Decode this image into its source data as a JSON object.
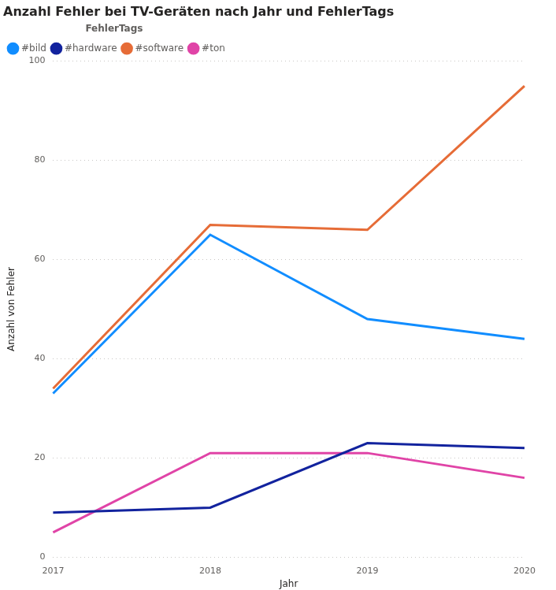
{
  "chart_data": {
    "type": "line",
    "title": "Anzahl Fehler bei TV-Geräten nach Jahr und FehlerTags",
    "x_label": "Jahr",
    "y_label": "Anzahl von Fehler",
    "legend_title": "FehlerTags",
    "legend": "top-left",
    "categories": [
      "2017",
      "2018",
      "2019",
      "2020"
    ],
    "series": [
      {
        "name": "#bild",
        "color": "#118DFF",
        "values": [
          33,
          65,
          48,
          44
        ]
      },
      {
        "name": "#hardware",
        "color": "#12239E",
        "values": [
          9,
          10,
          23,
          22
        ]
      },
      {
        "name": "#software",
        "color": "#E66C37",
        "values": [
          34,
          67,
          66,
          95
        ]
      },
      {
        "name": "#ton",
        "color": "#E044A7",
        "values": [
          5,
          21,
          21,
          16
        ]
      }
    ],
    "ylim": [
      0,
      100
    ],
    "yticks": [
      0,
      20,
      40,
      60,
      80,
      100
    ],
    "grid": true
  }
}
